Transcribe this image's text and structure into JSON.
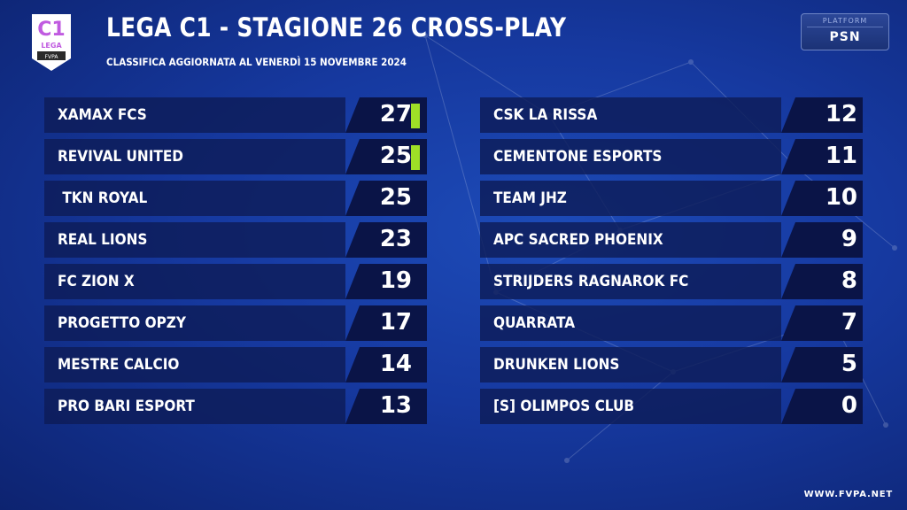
{
  "header": {
    "logo_top": "C1",
    "logo_text": "LEGA",
    "logo_brand": "FVPA",
    "title": "LEGA C1 - STAGIONE 26 CROSS-PLAY",
    "subtitle": "CLASSIFICA AGGIORNATA AL VENERDÌ 15 NOVEMBRE 2024"
  },
  "platform": {
    "label": "PLATFORM",
    "value": "PSN"
  },
  "colors": {
    "accent_marker": "#9ee027",
    "background": "#1639a0",
    "row": "#0e1c58"
  },
  "standings_left": [
    {
      "team": "XAMAX FCS",
      "points": "27",
      "marker": true
    },
    {
      "team": "REVIVAL UNITED",
      "points": "25",
      "marker": true
    },
    {
      "team": " TKN ROYAL",
      "points": "25",
      "marker": false
    },
    {
      "team": "REAL LIONS",
      "points": "23",
      "marker": false
    },
    {
      "team": "FC ZION X",
      "points": "19",
      "marker": false
    },
    {
      "team": "PROGETTO OPZY",
      "points": "17",
      "marker": false
    },
    {
      "team": "MESTRE CALCIO",
      "points": "14",
      "marker": false
    },
    {
      "team": "PRO BARI ESPORT",
      "points": "13",
      "marker": false
    }
  ],
  "standings_right": [
    {
      "team": "CSK LA RISSA",
      "points": "12",
      "marker": false
    },
    {
      "team": "CEMENTONE ESPORTS",
      "points": "11",
      "marker": false
    },
    {
      "team": "TEAM JHZ",
      "points": "10",
      "marker": false
    },
    {
      "team": "APC SACRED PHOENIX",
      "points": "9",
      "marker": false
    },
    {
      "team": "STRIJDERS RAGNAROK FC",
      "points": "8",
      "marker": false
    },
    {
      "team": "QUARRATA",
      "points": "7",
      "marker": false
    },
    {
      "team": "DRUNKEN LIONS",
      "points": "5",
      "marker": false
    },
    {
      "team": "[S] OLIMPOS CLUB",
      "points": "0",
      "marker": false
    }
  ],
  "footer": {
    "url": "WWW.FVPA.NET"
  }
}
